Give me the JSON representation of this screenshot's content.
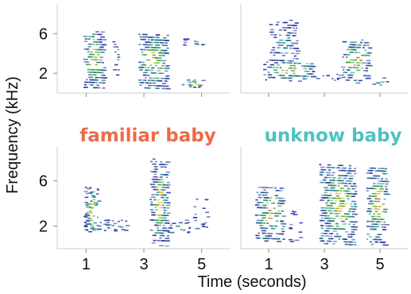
{
  "chart_data": {
    "type": "heatmap",
    "kind": "spectrogram-grid",
    "ylabel": "Frequency (kHz)",
    "xlabel": "Time (seconds)",
    "y_ticks": [
      "6",
      "2"
    ],
    "x_ticks": [
      "1",
      "3",
      "5"
    ],
    "y_tick_values": [
      6,
      2
    ],
    "x_tick_values": [
      1,
      3,
      5
    ],
    "ylim": [
      0,
      9
    ],
    "xlim": [
      0,
      6
    ],
    "grid": false,
    "colormap": [
      "#2b3a9e",
      "#1f7f8a",
      "#3fae3a",
      "#d8c020",
      "#e06030"
    ],
    "panels": [
      {
        "row": 0,
        "col": 0,
        "label": "",
        "blobs": [
          {
            "t0": 0.9,
            "t1": 1.6,
            "f0": 0.5,
            "f1": 6.3,
            "dense": 0.95,
            "striped": true,
            "hot": true
          },
          {
            "t0": 1.9,
            "t1": 2.1,
            "f0": 1.5,
            "f1": 5.5,
            "dense": 0.4,
            "striped": true,
            "hot": false
          },
          {
            "t0": 2.8,
            "t1": 3.8,
            "f0": 0.5,
            "f1": 6.0,
            "dense": 0.95,
            "striped": true,
            "hot": true
          },
          {
            "t0": 4.3,
            "t1": 5.0,
            "f0": 0.6,
            "f1": 1.4,
            "dense": 0.8,
            "striped": false,
            "hot": true
          },
          {
            "t0": 4.3,
            "t1": 5.0,
            "f0": 4.8,
            "f1": 5.6,
            "dense": 0.6,
            "striped": false,
            "hot": false
          }
        ]
      },
      {
        "row": 0,
        "col": 1,
        "label": "",
        "blobs": [
          {
            "t0": 0.8,
            "t1": 2.6,
            "f0": 1.5,
            "f1": 3.2,
            "dense": 0.75,
            "striped": true,
            "hot": true
          },
          {
            "t0": 1.0,
            "t1": 2.0,
            "f0": 3.2,
            "f1": 7.5,
            "dense": 0.55,
            "striped": true,
            "hot": false
          },
          {
            "t0": 2.6,
            "t1": 3.6,
            "f0": 1.3,
            "f1": 2.0,
            "dense": 0.35,
            "striped": false,
            "hot": false
          },
          {
            "t0": 3.6,
            "t1": 4.6,
            "f0": 1.2,
            "f1": 5.5,
            "dense": 0.7,
            "striped": true,
            "hot": true
          },
          {
            "t0": 4.7,
            "t1": 5.3,
            "f0": 0.6,
            "f1": 1.6,
            "dense": 0.25,
            "striped": false,
            "hot": false
          }
        ]
      },
      {
        "row": 1,
        "col": 0,
        "label": "familiar baby",
        "label_color": "#ef6a47",
        "blobs": [
          {
            "t0": 0.9,
            "t1": 1.4,
            "f0": 1.5,
            "f1": 5.5,
            "dense": 0.75,
            "striped": false,
            "hot": true
          },
          {
            "t0": 1.4,
            "t1": 2.4,
            "f0": 1.6,
            "f1": 2.6,
            "dense": 0.55,
            "striped": false,
            "hot": false
          },
          {
            "t0": 3.2,
            "t1": 3.8,
            "f0": 0.4,
            "f1": 8.0,
            "dense": 0.95,
            "striped": true,
            "hot": true
          },
          {
            "t0": 3.8,
            "t1": 4.6,
            "f0": 1.4,
            "f1": 2.6,
            "dense": 0.45,
            "striped": false,
            "hot": false
          },
          {
            "t0": 4.7,
            "t1": 5.2,
            "f0": 1.8,
            "f1": 4.5,
            "dense": 0.3,
            "striped": false,
            "hot": false
          }
        ]
      },
      {
        "row": 1,
        "col": 1,
        "label": "unknow baby",
        "label_color": "#4fc2c0",
        "blobs": [
          {
            "t0": 0.5,
            "t1": 1.5,
            "f0": 0.8,
            "f1": 5.5,
            "dense": 0.75,
            "striped": true,
            "hot": true
          },
          {
            "t0": 1.7,
            "t1": 2.1,
            "f0": 0.6,
            "f1": 3.5,
            "dense": 0.25,
            "striped": false,
            "hot": false
          },
          {
            "t0": 2.8,
            "t1": 4.1,
            "f0": 0.5,
            "f1": 7.5,
            "dense": 0.9,
            "striped": true,
            "hot": true
          },
          {
            "t0": 4.5,
            "t1": 5.2,
            "f0": 0.5,
            "f1": 7.2,
            "dense": 0.85,
            "striped": true,
            "hot": true
          }
        ]
      }
    ]
  }
}
